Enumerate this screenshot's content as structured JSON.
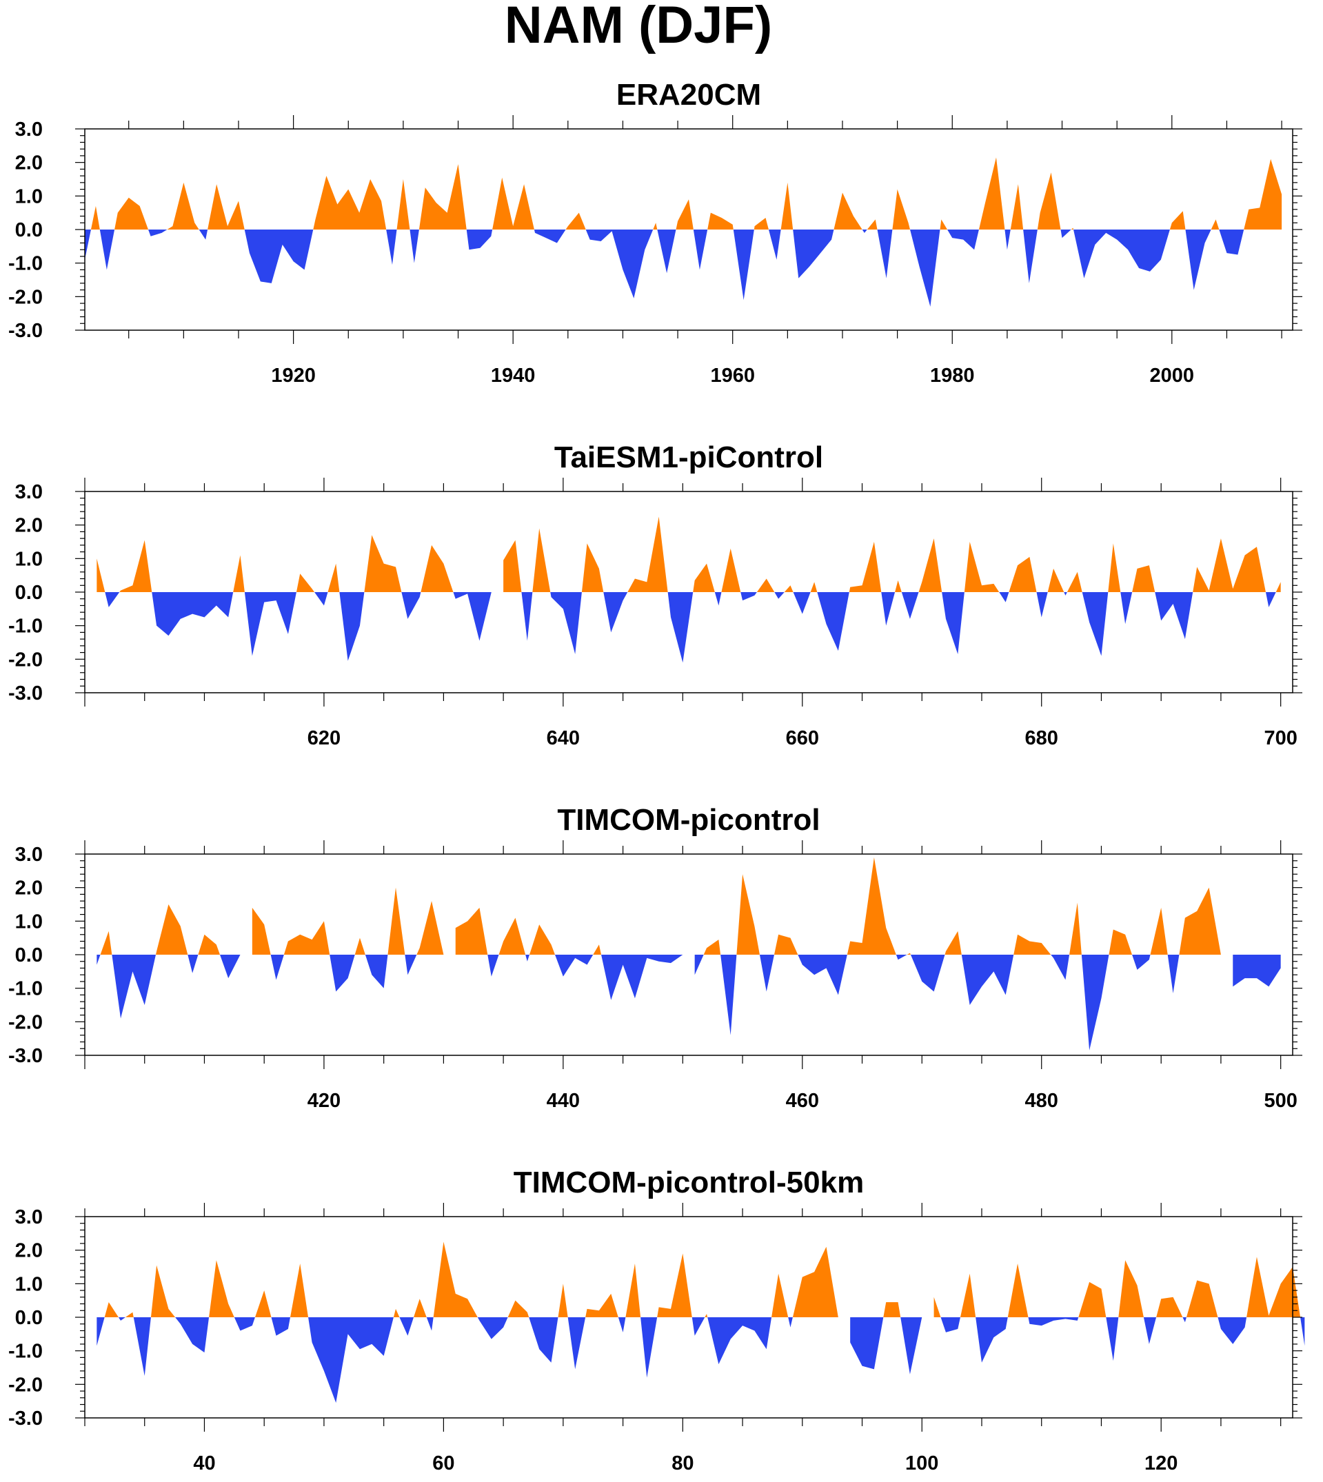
{
  "figure": {
    "title": "NAM (DJF)"
  },
  "colors": {
    "positive": "#ff8000",
    "negative": "#2b44ee",
    "axis": "#000000"
  },
  "chart_data": [
    {
      "type": "area",
      "title": "ERA20CM",
      "xlabel": "",
      "ylabel": "",
      "xlim": [
        1901,
        2011
      ],
      "ylim": [
        -3,
        3
      ],
      "x_tick_labels": [
        1920,
        1940,
        1960,
        1980,
        2000
      ],
      "y_tick_labels": [
        "3.0",
        "2.0",
        "1.0",
        "0.0",
        "-1.0",
        "-2.0",
        "-3.0"
      ],
      "grid": false,
      "x_start": 1901,
      "values": [
        -0.9,
        0.7,
        -1.2,
        0.5,
        0.95,
        0.7,
        -0.2,
        -0.1,
        0.1,
        1.4,
        0.2,
        -0.3,
        1.35,
        0.1,
        0.85,
        -0.7,
        -1.55,
        -1.6,
        -0.45,
        -0.95,
        -1.2,
        0.3,
        1.6,
        0.75,
        1.2,
        0.5,
        1.5,
        0.85,
        -1.05,
        1.5,
        -1.0,
        1.25,
        0.8,
        0.5,
        1.95,
        -0.6,
        -0.55,
        -0.2,
        1.55,
        0.1,
        1.35,
        -0.1,
        -0.25,
        -0.4,
        0.1,
        0.5,
        -0.3,
        -0.35,
        -0.05,
        -1.2,
        -2.05,
        -0.6,
        0.2,
        -1.3,
        0.25,
        0.9,
        -1.2,
        0.5,
        0.35,
        0.15,
        -2.1,
        0.1,
        0.35,
        -0.9,
        1.4,
        -1.45,
        -1.1,
        -0.7,
        -0.3,
        1.1,
        0.4,
        -0.1,
        0.3,
        -1.45,
        1.2,
        0.2,
        -1.1,
        -2.3,
        0.3,
        -0.25,
        -0.3,
        -0.6,
        0.8,
        2.15,
        -0.6,
        1.35,
        -1.6,
        0.5,
        1.7,
        -0.25,
        0.05,
        -1.45,
        -0.45,
        -0.1,
        -0.3,
        -0.6,
        -1.15,
        -1.25,
        -0.9,
        0.2,
        0.55,
        -1.8,
        -0.4,
        0.3,
        -0.7,
        -0.75,
        0.6,
        0.65,
        2.1,
        1.05
      ]
    },
    {
      "type": "area",
      "title": "TaiESM1-piControl",
      "xlabel": "",
      "ylabel": "",
      "xlim": [
        600,
        701
      ],
      "ylim": [
        -3,
        3
      ],
      "x_tick_labels": [
        620,
        640,
        660,
        680,
        700
      ],
      "y_tick_labels": [
        "3.0",
        "2.0",
        "1.0",
        "0.0",
        "-1.0",
        "-2.0",
        "-3.0"
      ],
      "grid": false,
      "x_start": 601,
      "values": [
        1.0,
        -0.45,
        0.05,
        0.2,
        1.55,
        -1.0,
        -1.3,
        -0.8,
        -0.65,
        -0.75,
        -0.4,
        -0.75,
        1.1,
        -1.9,
        -0.3,
        -0.25,
        -1.25,
        0.55,
        0.1,
        -0.4,
        0.85,
        -2.05,
        -1.0,
        1.7,
        0.85,
        0.75,
        -0.8,
        -0.15,
        1.4,
        0.85,
        -0.2,
        -0.05,
        -1.45,
        0.0,
        0.95,
        1.55,
        -1.45,
        1.9,
        -0.15,
        -0.5,
        -1.85,
        1.45,
        0.7,
        -1.2,
        -0.25,
        0.4,
        0.3,
        2.25,
        -0.75,
        -2.1,
        0.35,
        0.85,
        -0.4,
        1.3,
        -0.25,
        -0.1,
        0.4,
        -0.2,
        0.2,
        -0.65,
        0.3,
        -0.95,
        -1.75,
        0.15,
        0.2,
        1.5,
        -1.0,
        0.35,
        -0.8,
        0.3,
        1.6,
        -0.8,
        -1.85,
        1.5,
        0.2,
        0.25,
        -0.3,
        0.8,
        1.05,
        -0.75,
        0.7,
        -0.1,
        0.6,
        -0.9,
        -1.9,
        1.45,
        -0.95,
        0.7,
        0.8,
        -0.85,
        -0.35,
        -1.4,
        0.75,
        0.05,
        1.6,
        0.1,
        1.1,
        1.35,
        -0.45,
        0.3
      ]
    },
    {
      "type": "area",
      "title": "TIMCOM-picontrol",
      "xlabel": "",
      "ylabel": "",
      "xlim": [
        400,
        501
      ],
      "ylim": [
        -3,
        3
      ],
      "x_tick_labels": [
        420,
        440,
        460,
        480,
        500
      ],
      "y_tick_labels": [
        "3.0",
        "2.0",
        "1.0",
        "0.0",
        "-1.0",
        "-2.0",
        "-3.0"
      ],
      "grid": false,
      "x_start": 401,
      "values": [
        -0.3,
        0.7,
        -1.9,
        -0.5,
        -1.5,
        0.1,
        1.5,
        0.85,
        -0.55,
        0.6,
        0.3,
        -0.7,
        0.0,
        1.4,
        0.9,
        -0.75,
        0.4,
        0.6,
        0.45,
        1.0,
        -1.1,
        -0.7,
        0.5,
        -0.6,
        -1.0,
        2.0,
        -0.6,
        0.2,
        1.6,
        0.0,
        0.8,
        1.0,
        1.4,
        -0.65,
        0.4,
        1.1,
        -0.2,
        0.9,
        0.3,
        -0.65,
        -0.1,
        -0.3,
        0.3,
        -1.35,
        -0.3,
        -1.3,
        -0.1,
        -0.2,
        -0.25,
        0.0,
        -0.6,
        0.2,
        0.45,
        -2.4,
        2.4,
        0.85,
        -1.1,
        0.6,
        0.5,
        -0.3,
        -0.6,
        -0.4,
        -1.2,
        0.4,
        0.35,
        2.9,
        0.8,
        -0.15,
        0.05,
        -0.8,
        -1.1,
        0.1,
        0.7,
        -1.5,
        -0.95,
        -0.5,
        -1.2,
        0.6,
        0.4,
        0.35,
        -0.1,
        -0.75,
        1.55,
        -2.85,
        -1.3,
        0.75,
        0.6,
        -0.45,
        -0.15,
        1.4,
        -1.15,
        1.1,
        1.3,
        2.0,
        0.0,
        -0.95,
        -0.7,
        -0.7,
        -0.95,
        -0.4
      ]
    },
    {
      "type": "area",
      "title": "TIMCOM-picontrol-50km",
      "xlabel": "",
      "ylabel": "",
      "xlim": [
        30,
        131
      ],
      "ylim": [
        -3,
        3
      ],
      "x_tick_labels": [
        40,
        60,
        80,
        100,
        120
      ],
      "y_tick_labels": [
        "3.0",
        "2.0",
        "1.0",
        "0.0",
        "-1.0",
        "-2.0",
        "-3.0"
      ],
      "grid": false,
      "x_start": 31,
      "values": [
        -0.85,
        0.45,
        -0.1,
        0.15,
        -1.75,
        1.55,
        0.25,
        -0.2,
        -0.8,
        -1.05,
        1.7,
        0.4,
        -0.4,
        -0.25,
        0.8,
        -0.55,
        -0.35,
        1.6,
        -0.75,
        -1.6,
        -2.55,
        -0.5,
        -0.95,
        -0.8,
        -1.15,
        0.25,
        -0.55,
        0.55,
        -0.4,
        2.25,
        0.7,
        0.55,
        -0.1,
        -0.65,
        -0.3,
        0.5,
        0.15,
        -0.95,
        -1.35,
        1.0,
        -1.55,
        0.25,
        0.2,
        0.7,
        -0.45,
        1.6,
        -1.8,
        0.3,
        0.25,
        1.9,
        -0.55,
        0.1,
        -1.4,
        -0.65,
        -0.25,
        -0.4,
        -0.95,
        1.3,
        -0.3,
        1.2,
        1.35,
        2.1,
        0.0,
        -0.75,
        -1.45,
        -1.55,
        0.45,
        0.45,
        -1.7,
        0.0,
        0.6,
        -0.45,
        -0.35,
        1.3,
        -1.35,
        -0.6,
        -0.35,
        1.6,
        -0.2,
        -0.25,
        -0.1,
        -0.05,
        -0.1,
        1.05,
        0.85,
        -1.3,
        1.7,
        0.95,
        -0.8,
        0.55,
        0.6,
        -0.15,
        1.1,
        1.0,
        -0.35,
        -0.8,
        -0.3,
        1.8,
        0.05,
        1.0,
        1.5,
        -0.85
      ]
    }
  ]
}
